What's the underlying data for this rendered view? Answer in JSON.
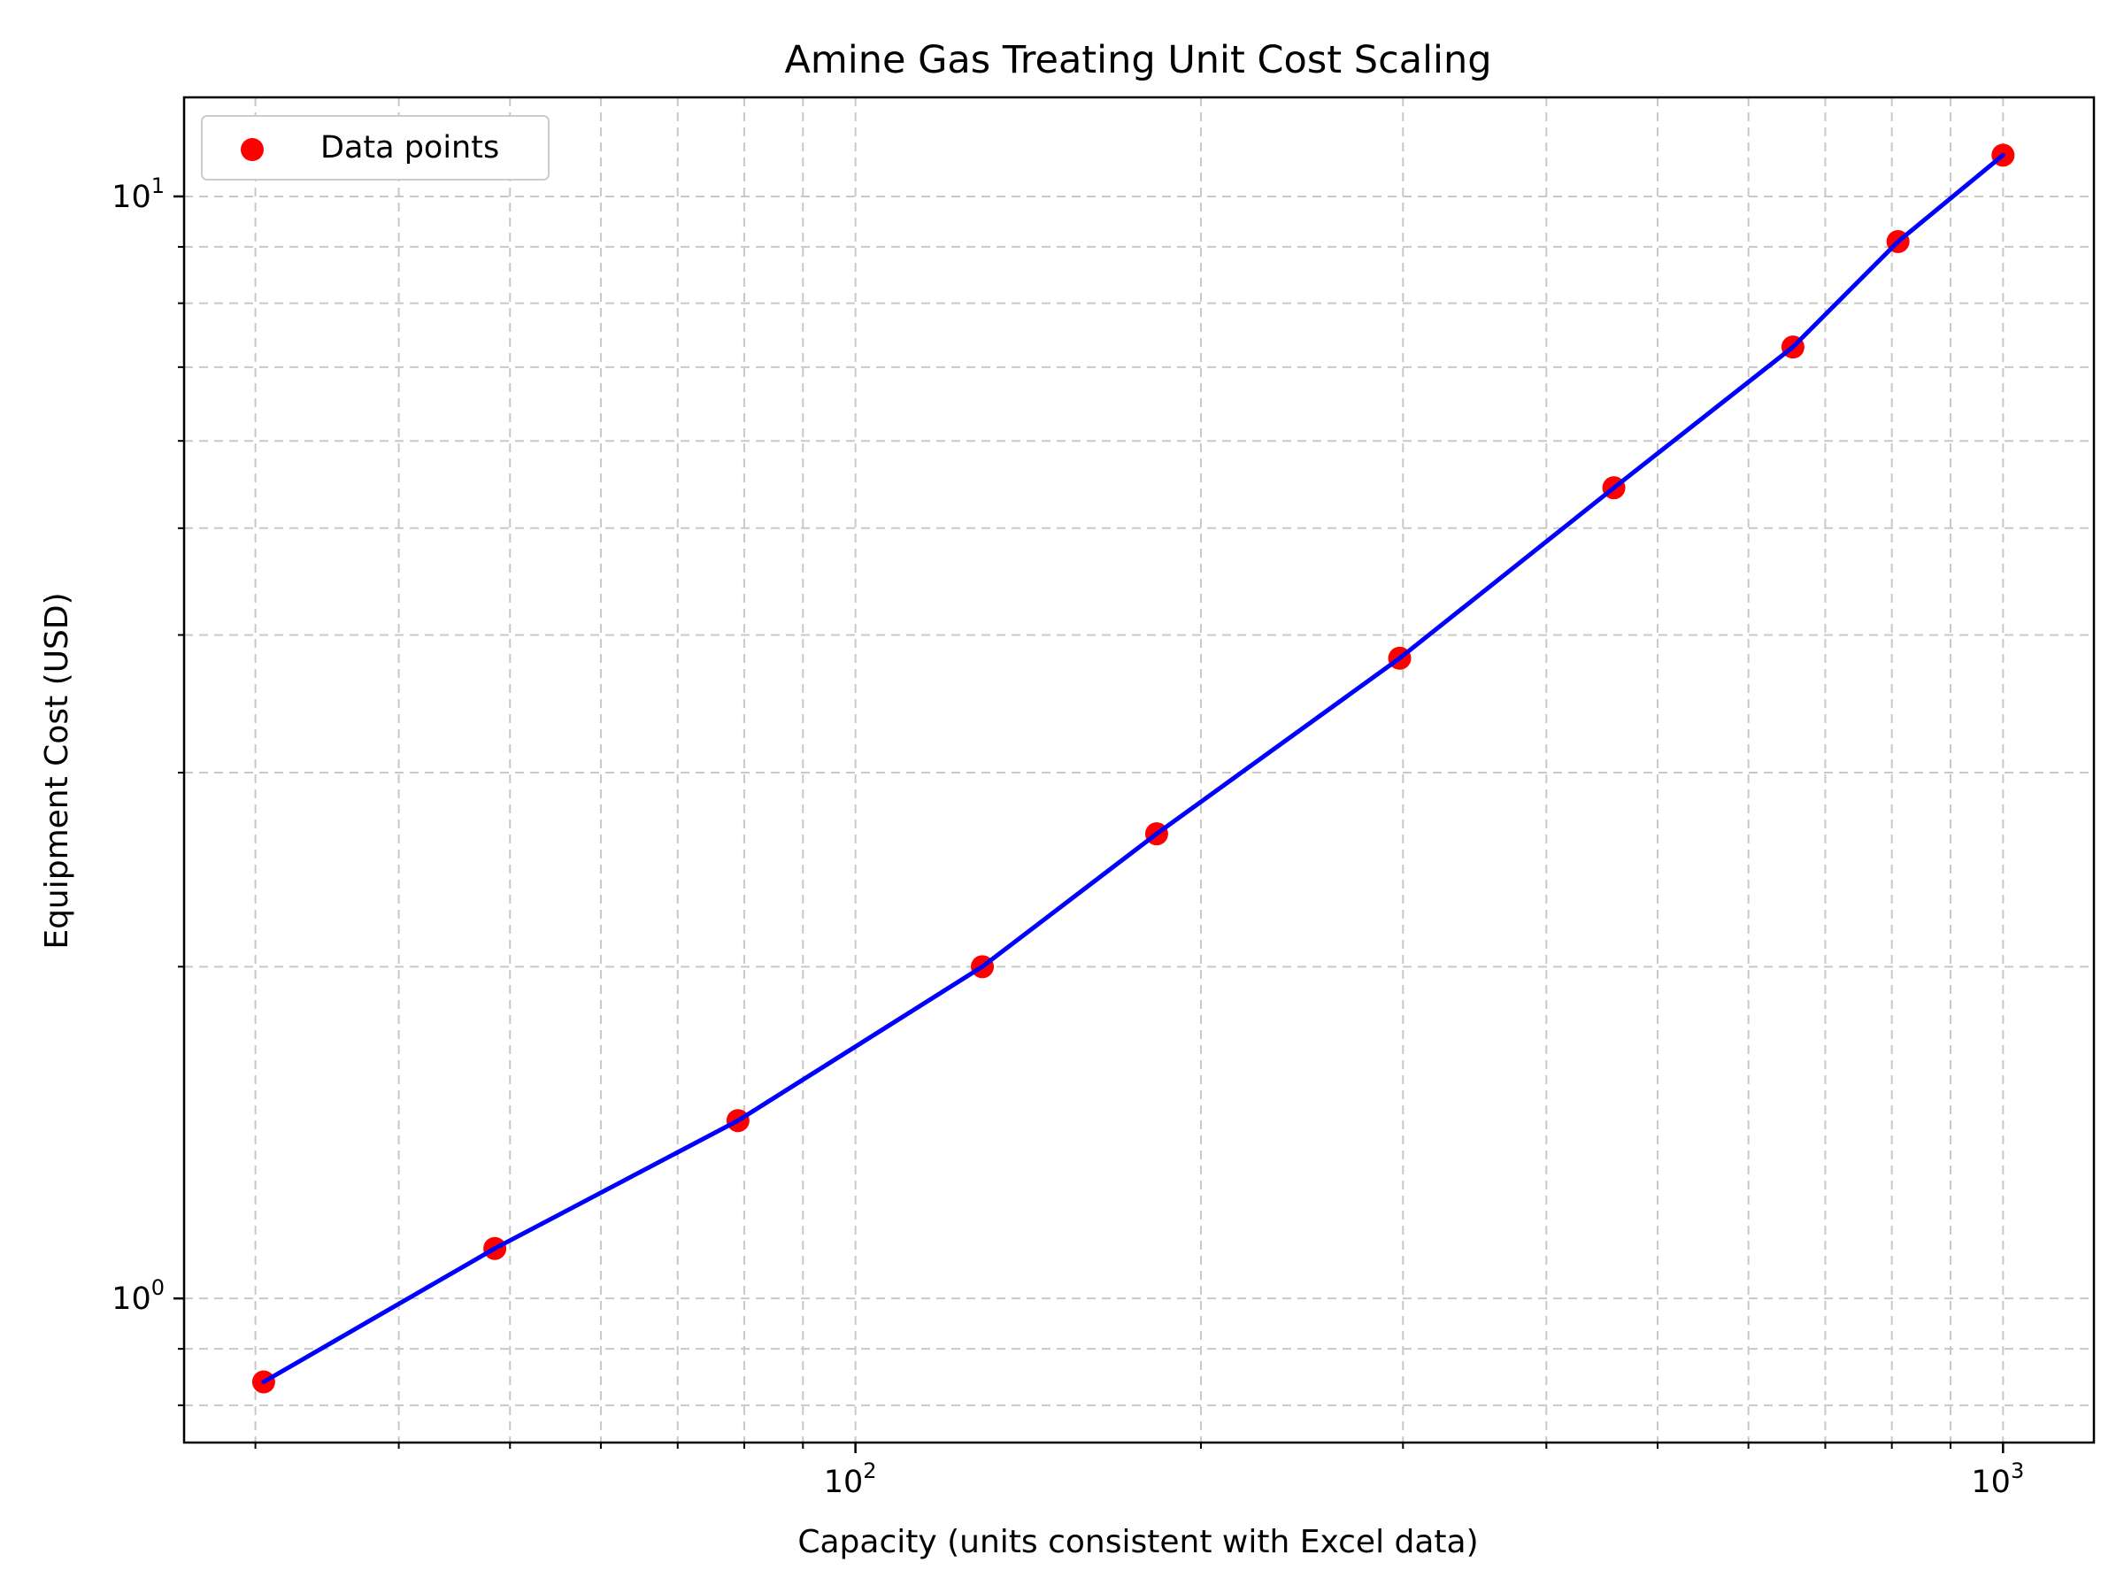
{
  "chart_data": {
    "type": "scatter",
    "title": "Amine Gas Treating Unit Cost Scaling",
    "xlabel": "Capacity (units consistent with Excel data)",
    "ylabel": "Equipment Cost (USD)",
    "xscale": "log",
    "yscale": "log",
    "xlim": [
      26,
      1200
    ],
    "ylim": [
      0.74,
      12.3
    ],
    "grid": true,
    "x_ticks": [
      {
        "value": 100,
        "base": "10",
        "exp": "2"
      },
      {
        "value": 1000,
        "base": "10",
        "exp": "3"
      }
    ],
    "y_ticks": [
      {
        "value": 1,
        "base": "10",
        "exp": "0"
      },
      {
        "value": 10,
        "base": "10",
        "exp": "1"
      }
    ],
    "legend": {
      "position": "top-left",
      "entries": [
        {
          "label": "Data points",
          "color": "#ff0000"
        }
      ]
    },
    "series": [
      {
        "name": "Data points",
        "kind": "scatter",
        "color": "#ff0000",
        "x": [
          30.5,
          48.5,
          79,
          129,
          183,
          298,
          458,
          656,
          810,
          1000
        ],
        "y": [
          0.84,
          1.11,
          1.45,
          2.0,
          2.64,
          3.81,
          5.44,
          7.3,
          9.1,
          10.9
        ]
      },
      {
        "kind": "line",
        "color": "#0000ff",
        "x": [
          30.5,
          48.5,
          79,
          129,
          183,
          298,
          458,
          656,
          810,
          1000
        ],
        "y": [
          0.84,
          1.11,
          1.45,
          2.0,
          2.64,
          3.81,
          5.44,
          7.3,
          9.1,
          10.9
        ]
      }
    ]
  }
}
